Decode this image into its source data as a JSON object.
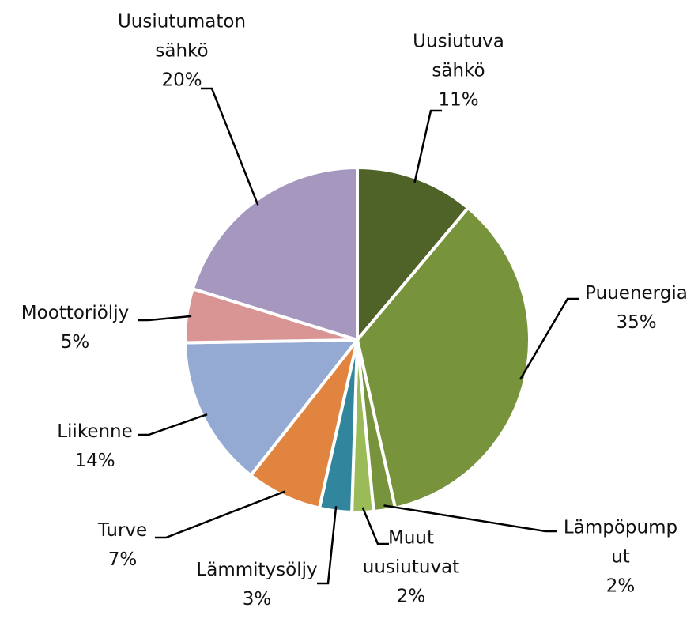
{
  "chart_data": {
    "type": "pie",
    "categories": [
      "Uusiutuva sähkö",
      "Puuenergia",
      "Lämpöpumput",
      "Muut uusiutuvat",
      "Lämmitysöljy",
      "Turve",
      "Liikenne",
      "Moottoriöljy",
      "Uusiutumaton sähkö"
    ],
    "values": [
      11,
      35,
      2,
      2,
      3,
      7,
      14,
      5,
      20
    ],
    "value_labels": [
      "11%",
      "35%",
      "2%",
      "2%",
      "3%",
      "7%",
      "14%",
      "5%",
      "20%"
    ],
    "colors": [
      "#4f6228",
      "#77933c",
      "#77933c",
      "#9bbb59",
      "#31859c",
      "#e0843f",
      "#95aad3",
      "#d99594",
      "#a697bf"
    ]
  }
}
